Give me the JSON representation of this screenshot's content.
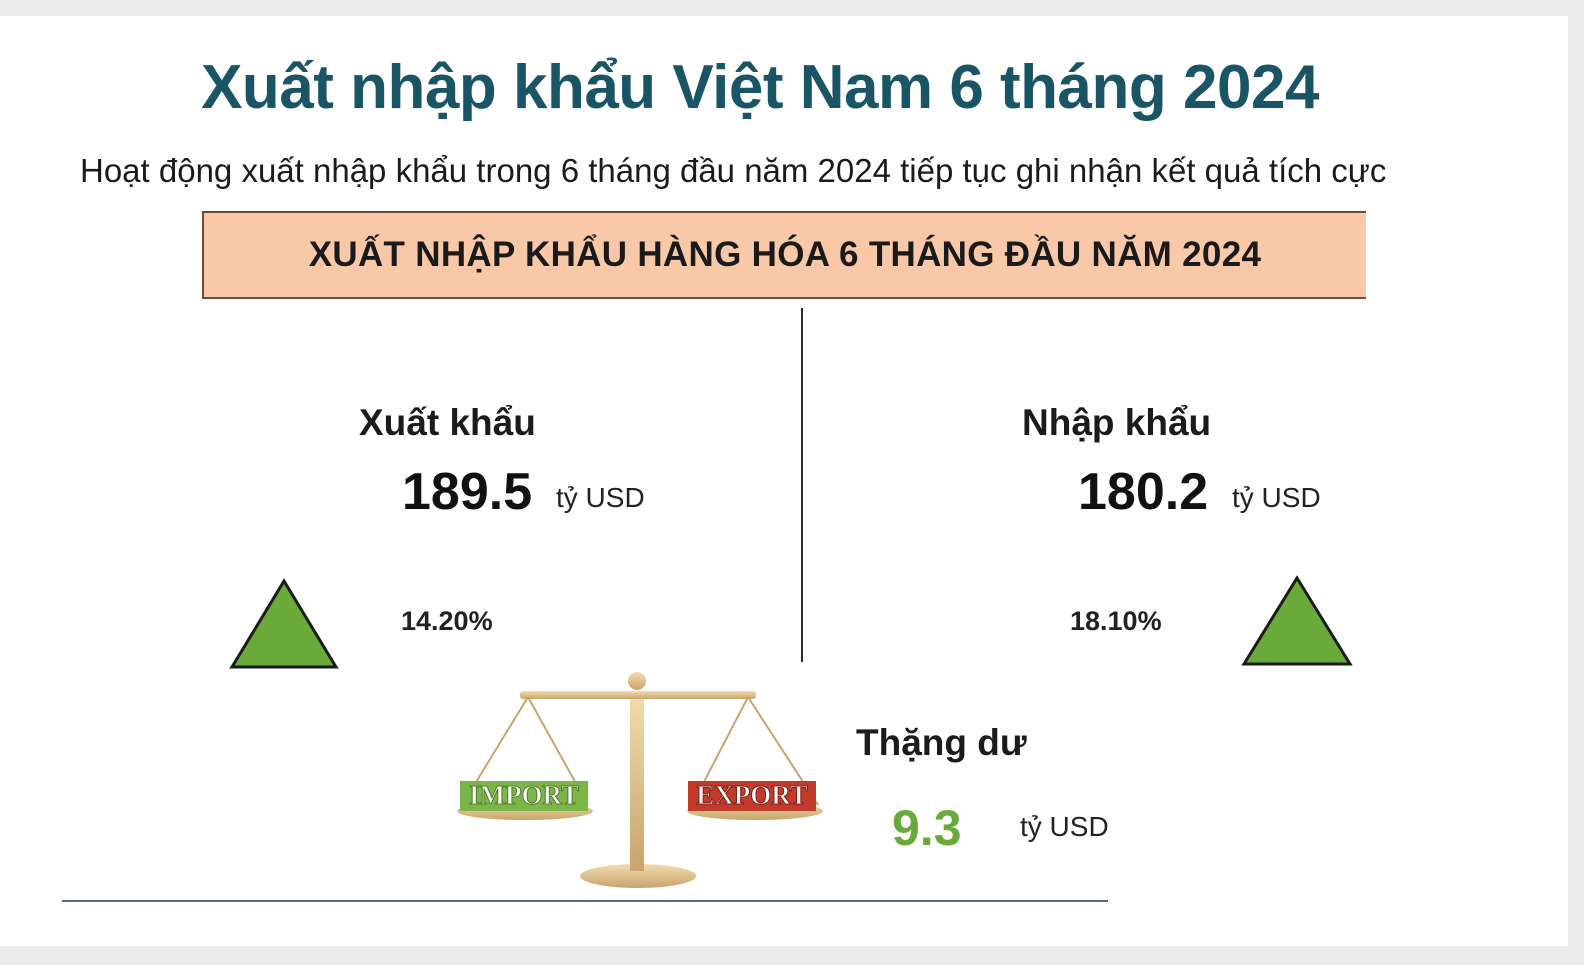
{
  "title": "Xuất nhập khẩu Việt Nam 6 tháng 2024",
  "subtitle": "Hoạt động xuất nhập khẩu trong 6 tháng đầu năm 2024 tiếp tục ghi nhận kết quả tích cực",
  "banner": "XUẤT NHẬP KHẨU HÀNG HÓA 6 THÁNG ĐẦU NĂM 2024",
  "export": {
    "label": "Xuất khẩu",
    "value": "189.5",
    "unit": "tỷ USD",
    "growth": "14.20%"
  },
  "import": {
    "label": "Nhập khẩu",
    "value": "180.2",
    "unit": "tỷ USD",
    "growth": "18.10%"
  },
  "surplus": {
    "label": "Thặng dư",
    "value": "9.3",
    "unit": "tỷ USD"
  },
  "scale_image": {
    "left_pan_text": "IMPORT",
    "right_pan_text": "EXPORT"
  },
  "colors": {
    "title": "#1a5566",
    "banner_bg": "#f8c8a8",
    "up_arrow": "#6aaa3a",
    "surplus": "#6aaa3a"
  }
}
